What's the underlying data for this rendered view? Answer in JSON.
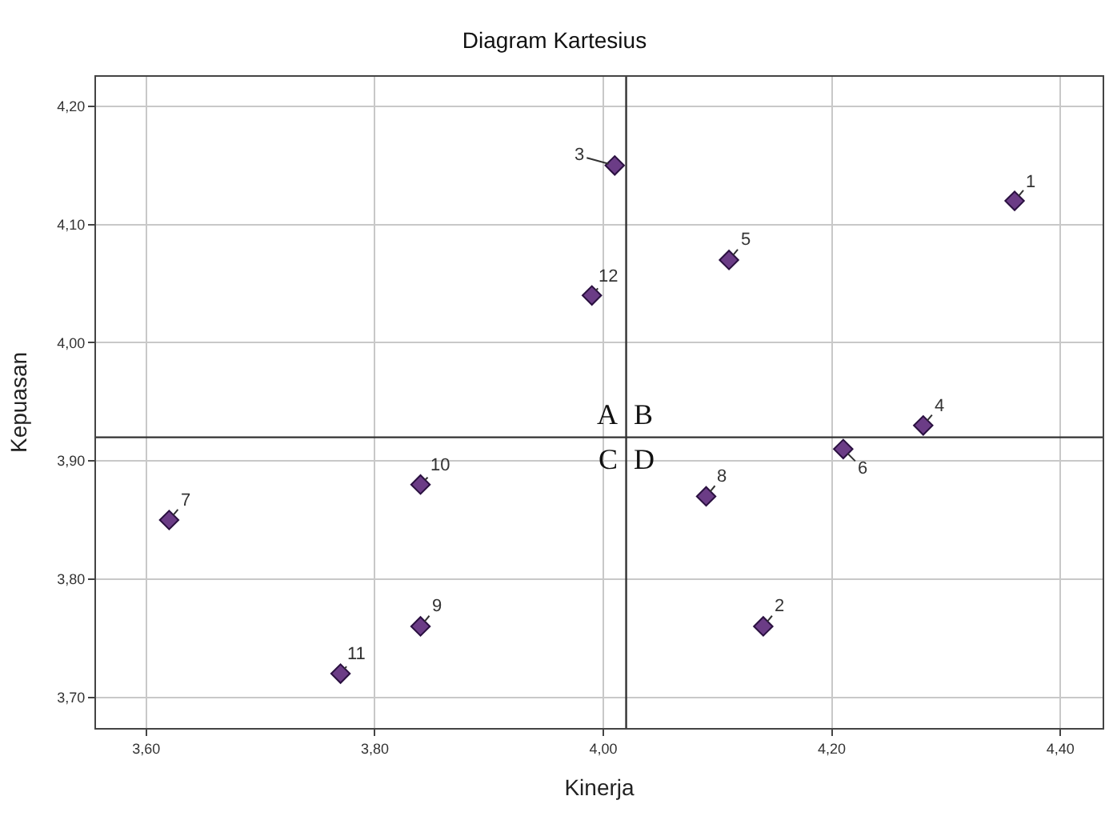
{
  "chart_data": {
    "type": "scatter",
    "title": "Diagram Kartesius",
    "xlabel": "Kinerja",
    "ylabel": "Kepuasan",
    "x": [
      4.36,
      4.14,
      4.01,
      4.28,
      4.11,
      4.21,
      3.62,
      4.09,
      3.84,
      3.84,
      3.77,
      3.99
    ],
    "values": [
      4.12,
      3.76,
      4.15,
      3.93,
      4.07,
      3.91,
      3.85,
      3.87,
      3.76,
      3.88,
      3.72,
      4.04
    ],
    "color": "#6b3c86",
    "marker": "diamond",
    "grid": true,
    "xlim": [
      3.556,
      4.437
    ],
    "ylim": [
      3.674,
      4.225
    ],
    "xticks": [
      {
        "value": 3.6,
        "label": "3,60"
      },
      {
        "value": 3.8,
        "label": "3,80"
      },
      {
        "value": 4.0,
        "label": "4,00"
      },
      {
        "value": 4.2,
        "label": "4,20"
      },
      {
        "value": 4.4,
        "label": "4,40"
      }
    ],
    "yticks": [
      {
        "value": 3.7,
        "label": "3,70"
      },
      {
        "value": 3.8,
        "label": "3,80"
      },
      {
        "value": 3.9,
        "label": "3,90"
      },
      {
        "value": 4.0,
        "label": "4,00"
      },
      {
        "value": 4.1,
        "label": "4,10"
      },
      {
        "value": 4.2,
        "label": "4,20"
      }
    ],
    "ref_lines": [
      {
        "axis": "x",
        "value": 4.02,
        "color": "#333333"
      },
      {
        "axis": "y",
        "value": 3.92,
        "color": "#333333"
      }
    ],
    "annotations": [
      {
        "text": "1",
        "x": 4.36,
        "y": 4.12
      },
      {
        "text": "2",
        "x": 4.14,
        "y": 3.76
      },
      {
        "text": "3",
        "x": 4.01,
        "y": 4.15
      },
      {
        "text": "4",
        "x": 4.28,
        "y": 3.93
      },
      {
        "text": "5",
        "x": 4.11,
        "y": 4.07
      },
      {
        "text": "6",
        "x": 4.21,
        "y": 3.91
      },
      {
        "text": "7",
        "x": 3.62,
        "y": 3.85
      },
      {
        "text": "8",
        "x": 4.09,
        "y": 3.87
      },
      {
        "text": "9",
        "x": 3.84,
        "y": 3.76
      },
      {
        "text": "10",
        "x": 3.84,
        "y": 3.88
      },
      {
        "text": "11",
        "x": 3.77,
        "y": 3.72
      },
      {
        "text": "12",
        "x": 3.99,
        "y": 4.04
      },
      "A",
      "B",
      "C",
      "D"
    ]
  }
}
